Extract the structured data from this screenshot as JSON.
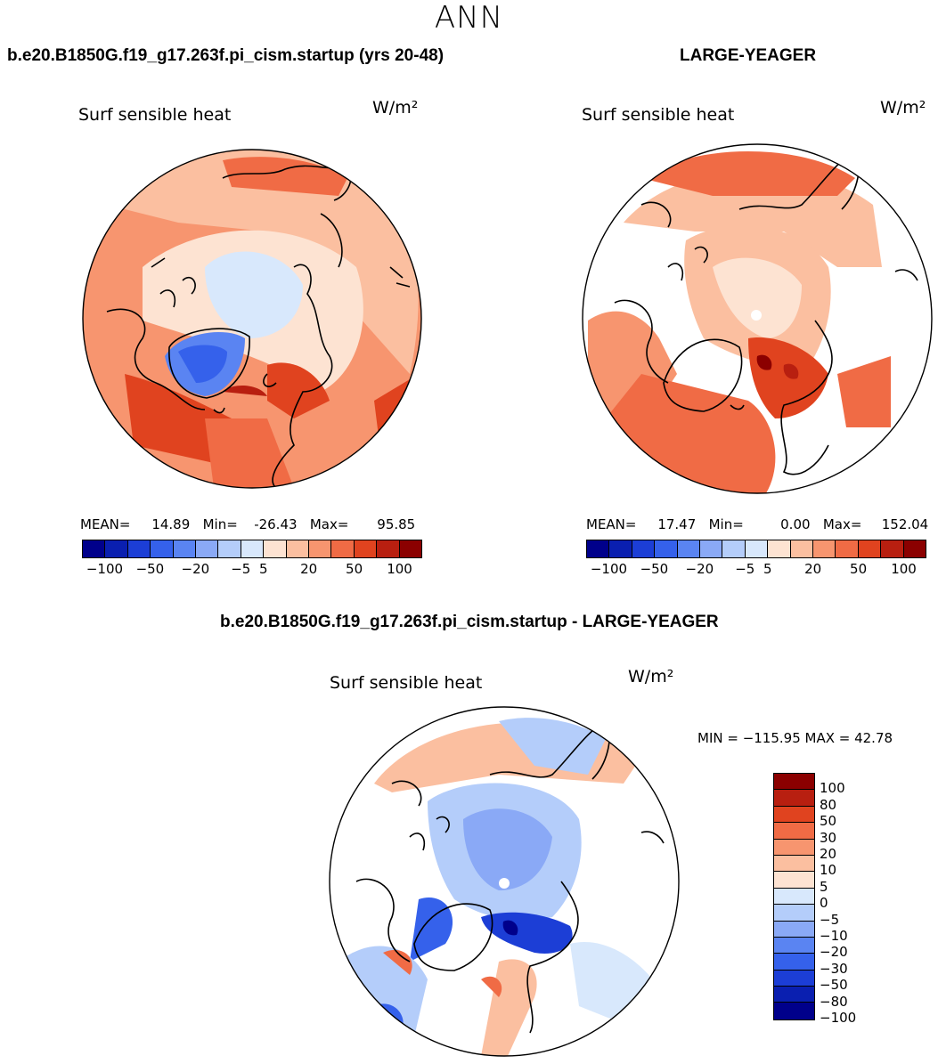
{
  "figure": {
    "season": "ANN",
    "case_title": "b.e20.B1850G.f19_g17.263f.pi_cism.startup (yrs 20-48)",
    "obs_title": "LARGE-YEAGER",
    "diff_title": "b.e20.B1850G.f19_g17.263f.pi_cism.startup - LARGE-YEAGER"
  },
  "colors": {
    "levels": [
      "#00008b",
      "#0a1fb0",
      "#1c3ed6",
      "#3561eb",
      "#5a84f2",
      "#8aa9f6",
      "#b4cdfa",
      "#d8e8fc",
      "#fde3d2",
      "#fbbfa0",
      "#f7956f",
      "#f06b45",
      "#e0431f",
      "#b81f10",
      "#8b0000"
    ],
    "diff_levels": [
      "#8b0000",
      "#b81f10",
      "#e0431f",
      "#f06b45",
      "#f7956f",
      "#fbbfa0",
      "#fde3d2",
      "#d8e8fc",
      "#b4cdfa",
      "#8aa9f6",
      "#5a84f2",
      "#3561eb",
      "#1c3ed6",
      "#0a1fb0",
      "#00008b"
    ]
  },
  "chart_data": [
    {
      "type": "heatmap",
      "projection": "north-polar-stereographic",
      "title": "Surf sensible heat",
      "units": "W/m²",
      "stats": {
        "mean": "14.89",
        "min": "-26.43",
        "max": "95.85"
      },
      "stats_labels": {
        "mean": "MEAN=",
        "min": "Min=",
        "max": "Max="
      },
      "colorbar_ticks": [
        "-100",
        "-50",
        "-20",
        "-5",
        "5",
        "20",
        "50",
        "100"
      ]
    },
    {
      "type": "heatmap",
      "projection": "north-polar-stereographic",
      "title": "Surf sensible heat",
      "units": "W/m²",
      "stats": {
        "mean": "17.47",
        "min": "0.00",
        "max": "152.04"
      },
      "stats_labels": {
        "mean": "MEAN=",
        "min": "Min=",
        "max": "Max="
      },
      "colorbar_ticks": [
        "-100",
        "-50",
        "-20",
        "-5",
        "5",
        "20",
        "50",
        "100"
      ]
    },
    {
      "type": "heatmap",
      "projection": "north-polar-stereographic",
      "title": "Surf sensible heat",
      "units": "W/m²",
      "stats": {
        "min": "-115.95",
        "max": "42.78"
      },
      "stats_text": "MIN = −115.95 MAX =  42.78",
      "colorbar_ticks": [
        "100",
        "80",
        "50",
        "30",
        "20",
        "10",
        "5",
        "0",
        "-5",
        "-10",
        "-20",
        "-30",
        "-50",
        "-80",
        "-100"
      ]
    }
  ]
}
